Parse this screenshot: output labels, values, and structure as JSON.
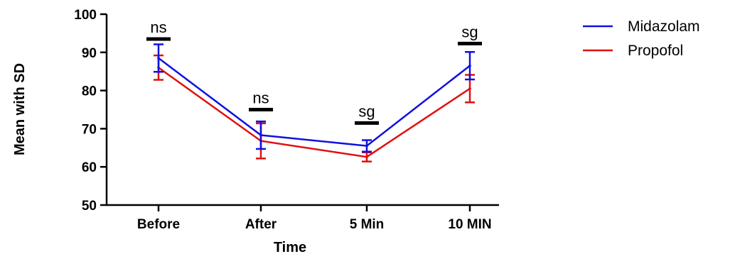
{
  "chart_data": {
    "type": "line",
    "xlabel": "Time",
    "ylabel": "Mean with SD",
    "categories": [
      "Before",
      "After",
      "5 Min",
      "10 MIN"
    ],
    "ylim": [
      50,
      100
    ],
    "yticks": [
      50,
      60,
      70,
      80,
      90,
      100
    ],
    "series": [
      {
        "name": "Midazolam",
        "color": "#1010e0",
        "values": [
          88.5,
          68.3,
          65.5,
          86.5
        ],
        "sd": [
          3.6,
          3.6,
          1.5,
          3.6
        ]
      },
      {
        "name": "Propofol",
        "color": "#e01010",
        "values": [
          86.0,
          66.8,
          62.6,
          80.5
        ],
        "sd": [
          3.2,
          4.6,
          1.2,
          3.6
        ]
      }
    ],
    "annotations": [
      {
        "category": "Before",
        "text": "ns",
        "y": 93.5
      },
      {
        "category": "After",
        "text": "ns",
        "y": 75.0
      },
      {
        "category": "5 Min",
        "text": "sg",
        "y": 71.5
      },
      {
        "category": "10 MIN",
        "text": "sg",
        "y": 92.3
      }
    ],
    "legend_position": "top-right",
    "grid": false
  }
}
